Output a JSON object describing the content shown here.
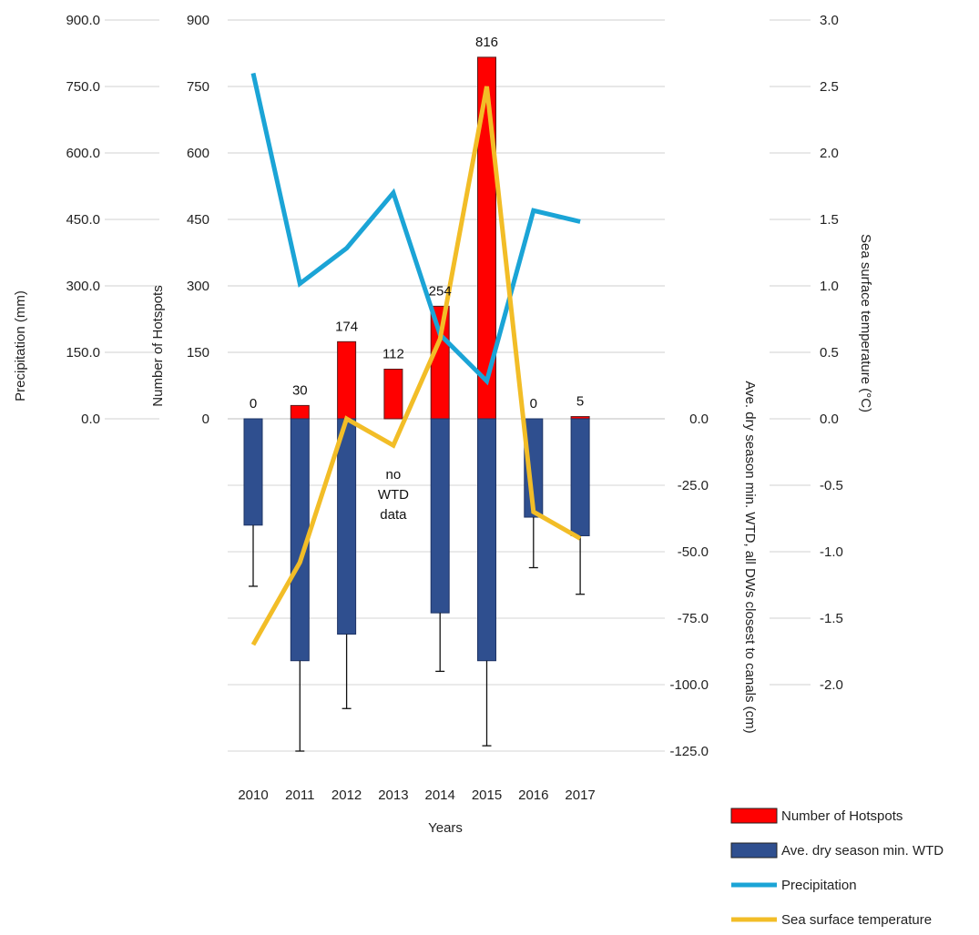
{
  "chart_data": {
    "type": "bar",
    "categories": [
      "2010",
      "2011",
      "2012",
      "2013",
      "2014",
      "2015",
      "2016",
      "2017"
    ],
    "series": [
      {
        "name": "Number of Hotspots",
        "kind": "bar",
        "axis": "hotspots",
        "color": "#ff0000",
        "values": [
          0,
          30,
          174,
          112,
          254,
          816,
          0,
          5
        ],
        "labels": [
          "0",
          "30",
          "174",
          "112",
          "254",
          "816",
          "0",
          "5"
        ]
      },
      {
        "name": "Ave. dry season min. WTD",
        "kind": "bar",
        "axis": "wtd",
        "color": "#2f4f8f",
        "values": [
          -40,
          -91,
          -81,
          null,
          -73,
          -91,
          -37,
          -44
        ],
        "error_low": [
          -63,
          -125,
          -109,
          null,
          -95,
          -123,
          -56,
          -66
        ]
      },
      {
        "name": "Precipitation",
        "kind": "line",
        "axis": "precipitation",
        "color": "#1ba4d6",
        "values": [
          780,
          305,
          385,
          510,
          190,
          85,
          470,
          445
        ]
      },
      {
        "name": "Sea surface temperature",
        "kind": "line",
        "axis": "sst",
        "color": "#f2bd27",
        "values": [
          -1.7,
          -1.08,
          0.0,
          -0.2,
          0.6,
          2.5,
          -0.7,
          -0.9
        ]
      }
    ],
    "axes": {
      "precipitation": {
        "title": "Precipitation (mm)",
        "range": [
          0,
          900
        ],
        "ticks": [
          "0.0",
          "150.0",
          "300.0",
          "450.0",
          "600.0",
          "750.0",
          "900.0"
        ]
      },
      "hotspots": {
        "title": "Number of Hotspots",
        "range": [
          0,
          900
        ],
        "ticks": [
          "0",
          "150",
          "300",
          "450",
          "600",
          "750",
          "900"
        ]
      },
      "wtd": {
        "title": "Ave. dry season min. WTD, all DWs closest to canals (cm)",
        "range": [
          -125,
          0
        ],
        "ticks": [
          "0.0",
          "-25.0",
          "-50.0",
          "-75.0",
          "-100.0",
          "-125.0"
        ]
      },
      "sst": {
        "title": "Sea surface temperature (°C)",
        "range": [
          -2.0,
          3.0
        ],
        "ticks": [
          "3.0",
          "2.5",
          "2.0",
          "1.5",
          "1.0",
          "0.5",
          "0.0",
          "-0.5",
          "-1.0",
          "-1.5",
          "-2.0"
        ]
      }
    },
    "xlabel": "Years",
    "annotation": [
      "no",
      "WTD",
      "data"
    ],
    "legend": [
      {
        "label": "Number of Hotspots",
        "type": "box",
        "color": "#ff0000"
      },
      {
        "label": "Ave. dry season min. WTD",
        "type": "box",
        "color": "#2f4f8f"
      },
      {
        "label": "Precipitation",
        "type": "line",
        "color": "#1ba4d6"
      },
      {
        "label": "Sea surface temperature",
        "type": "line",
        "color": "#f2bd27"
      }
    ],
    "legend_position": "bottom-right",
    "grid": true
  }
}
